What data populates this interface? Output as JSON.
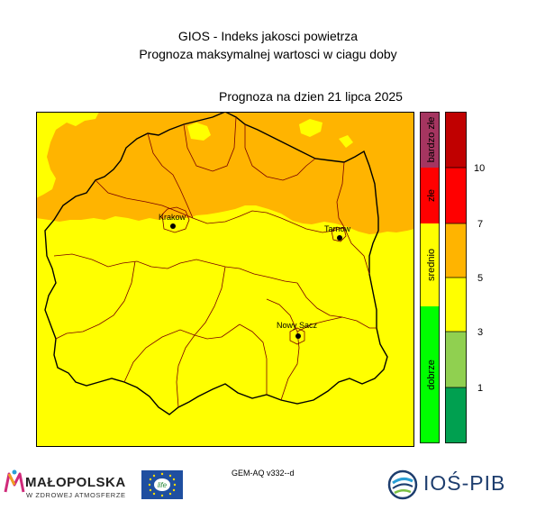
{
  "header": {
    "title": "GIOS - Indeks jakosci powietrza",
    "subtitle": "Prognoza maksymalnej wartosci w ciagu doby",
    "forecast_date": "Prognoza na dzien  21 lipca 2025"
  },
  "map": {
    "cities": [
      {
        "name": "Krakow"
      },
      {
        "name": "Tarnow"
      },
      {
        "name": "Nowy Sacz"
      }
    ],
    "colors": {
      "moderate": "#ffff00",
      "sufficient": "#ffb400",
      "background_frame": "#000000"
    }
  },
  "legend": {
    "categories": [
      {
        "label": "bardzo złe",
        "color": "#a53560"
      },
      {
        "label": "złe",
        "color": "#ff0000"
      },
      {
        "label": "srednio",
        "color": "#ffff00"
      },
      {
        "label": "dobrze",
        "color": "#00ff00"
      }
    ],
    "scale_colors": [
      "#00a050",
      "#90d050",
      "#ffff00",
      "#ffb400",
      "#ff0000",
      "#c00000"
    ],
    "scale_ticks": [
      "1",
      "3",
      "5",
      "7",
      "10"
    ]
  },
  "footer": {
    "model": "GEM-AQ v332--d",
    "malopolska_name": "MAŁOPOLSKA",
    "malopolska_tagline": "W ZDROWEJ ATMOSFERZE",
    "life_logo_text": "life",
    "ios_name": "IOŚ-PIB"
  }
}
